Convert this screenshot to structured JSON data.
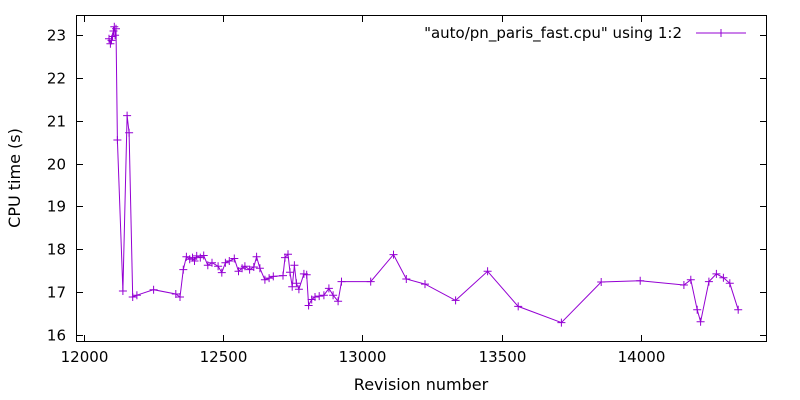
{
  "chart_data": {
    "type": "line",
    "xlabel": "Revision number",
    "ylabel": "CPU time (s)",
    "xlim": [
      11975,
      14450
    ],
    "ylim": [
      15.85,
      23.45
    ],
    "xticks": [
      12000,
      12500,
      13000,
      13500,
      14000
    ],
    "yticks": [
      16,
      17,
      18,
      19,
      20,
      21,
      22,
      23
    ],
    "grid": false,
    "legend_position": "top-right",
    "series": [
      {
        "name": "\"auto/pn_paris_fast.cpu\" using 1:2",
        "color": "#9400d3",
        "marker": "plus",
        "points": [
          [
            12090,
            22.92
          ],
          [
            12095,
            22.8
          ],
          [
            12099,
            22.88
          ],
          [
            12103,
            22.97
          ],
          [
            12106,
            23.1
          ],
          [
            12109,
            23.2
          ],
          [
            12112,
            23.0
          ],
          [
            12115,
            23.15
          ],
          [
            12120,
            20.55
          ],
          [
            12140,
            17.02
          ],
          [
            12155,
            21.12
          ],
          [
            12162,
            20.72
          ],
          [
            12175,
            16.88
          ],
          [
            12190,
            16.92
          ],
          [
            12250,
            17.05
          ],
          [
            12330,
            16.95
          ],
          [
            12345,
            16.88
          ],
          [
            12357,
            17.52
          ],
          [
            12368,
            17.82
          ],
          [
            12380,
            17.76
          ],
          [
            12390,
            17.8
          ],
          [
            12397,
            17.72
          ],
          [
            12405,
            17.84
          ],
          [
            12418,
            17.8
          ],
          [
            12430,
            17.85
          ],
          [
            12445,
            17.62
          ],
          [
            12460,
            17.68
          ],
          [
            12482,
            17.6
          ],
          [
            12495,
            17.45
          ],
          [
            12508,
            17.68
          ],
          [
            12522,
            17.72
          ],
          [
            12540,
            17.78
          ],
          [
            12555,
            17.48
          ],
          [
            12568,
            17.55
          ],
          [
            12578,
            17.6
          ],
          [
            12595,
            17.52
          ],
          [
            12610,
            17.58
          ],
          [
            12620,
            17.82
          ],
          [
            12632,
            17.55
          ],
          [
            12650,
            17.28
          ],
          [
            12665,
            17.32
          ],
          [
            12680,
            17.36
          ],
          [
            12715,
            17.38
          ],
          [
            12722,
            17.8
          ],
          [
            12733,
            17.88
          ],
          [
            12740,
            17.46
          ],
          [
            12748,
            17.12
          ],
          [
            12756,
            17.62
          ],
          [
            12763,
            17.2
          ],
          [
            12772,
            17.06
          ],
          [
            12790,
            17.42
          ],
          [
            12800,
            17.4
          ],
          [
            12807,
            16.68
          ],
          [
            12818,
            16.82
          ],
          [
            12830,
            16.88
          ],
          [
            12845,
            16.9
          ],
          [
            12862,
            16.92
          ],
          [
            12880,
            17.08
          ],
          [
            12895,
            16.92
          ],
          [
            12913,
            16.78
          ],
          [
            12925,
            17.24
          ],
          [
            13030,
            17.24
          ],
          [
            13112,
            17.87
          ],
          [
            13158,
            17.3
          ],
          [
            13225,
            17.18
          ],
          [
            13335,
            16.8
          ],
          [
            13450,
            17.48
          ],
          [
            13560,
            16.66
          ],
          [
            13715,
            16.28
          ],
          [
            13858,
            17.23
          ],
          [
            13998,
            17.26
          ],
          [
            14155,
            17.16
          ],
          [
            14180,
            17.28
          ],
          [
            14203,
            16.58
          ],
          [
            14215,
            16.3
          ],
          [
            14245,
            17.24
          ],
          [
            14272,
            17.42
          ],
          [
            14297,
            17.33
          ],
          [
            14320,
            17.2
          ],
          [
            14350,
            16.58
          ]
        ]
      }
    ]
  }
}
